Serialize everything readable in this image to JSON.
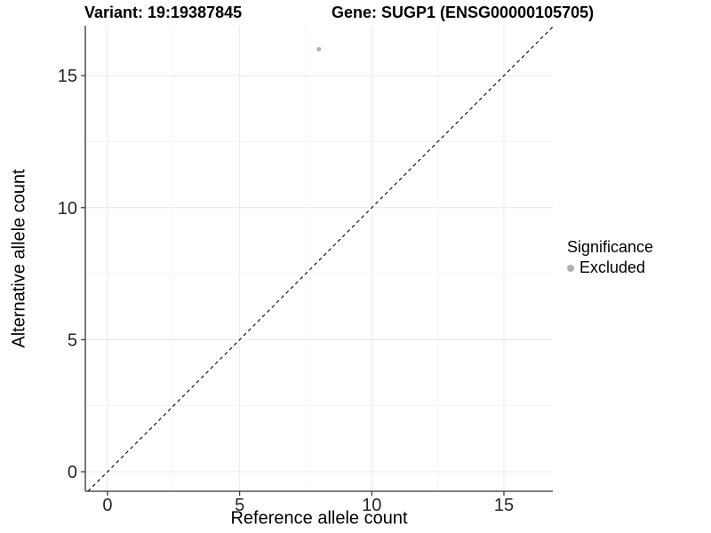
{
  "header": {
    "title_left": "Variant: 19:19387845",
    "title_right": "Gene: SUGP1 (ENSG00000105705)"
  },
  "chart_data": {
    "type": "scatter",
    "xlabel": "Reference allele count",
    "ylabel": "Alternative allele count",
    "xlim": [
      -0.84,
      16.85
    ],
    "ylim": [
      -0.74,
      16.89
    ],
    "xticks": [
      0,
      5,
      10,
      15
    ],
    "yticks": [
      0,
      5,
      10,
      15
    ],
    "x_minor_ticks": [
      2.5,
      7.5,
      12.5
    ],
    "y_minor_ticks": [
      2.5,
      7.5,
      12.5
    ],
    "grid": "major and minor gridlines on",
    "points": [
      {
        "x": 8,
        "y": 16,
        "series": "Excluded"
      }
    ],
    "series": [
      {
        "name": "Excluded",
        "color": "#b4b4b4",
        "point_radius": 2.6
      }
    ],
    "reference_line": {
      "kind": "identity y=x",
      "style": "dashed",
      "color": "#000000"
    },
    "legend": {
      "title": "Significance",
      "position": "right",
      "entries": [
        {
          "label": "Excluded",
          "color": "#b0b0b0"
        }
      ]
    },
    "style": {
      "background": "#ffffff",
      "grid_major_color": "#e8e8e8",
      "grid_minor_color": "#f4f4f4",
      "axis_line_color": "#333333",
      "tick_color": "#333333",
      "tick_label_color": "#262626"
    }
  }
}
